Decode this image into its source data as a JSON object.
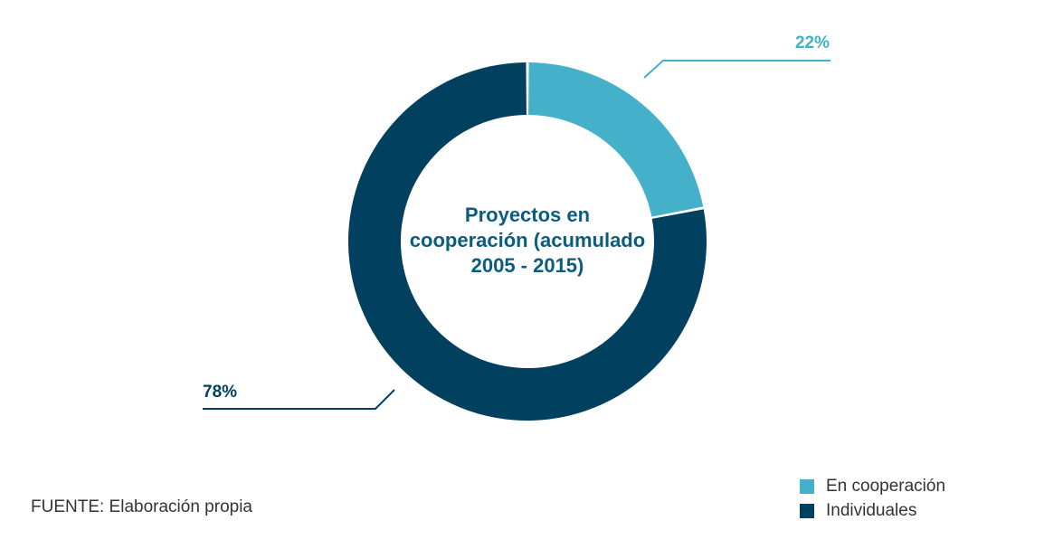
{
  "colors": {
    "en_cooperacion": "#45b0c9",
    "individuales": "#02405f",
    "title": "#0a5c80",
    "text": "#333333"
  },
  "chart_data": {
    "type": "pie",
    "variant": "donut",
    "title": "Proyectos en cooperación (acumulado 2005 - 2015)",
    "title_lines": [
      "Proyectos en",
      "cooperación (acumulado",
      "2005 - 2015)"
    ],
    "categories": [
      "En cooperación",
      "Individuales"
    ],
    "values": [
      22,
      78
    ],
    "labels": [
      "22%",
      "78%"
    ],
    "legend": {
      "placement": "bottom-right",
      "entries": [
        "En cooperación",
        "Individuales"
      ]
    }
  },
  "source": "FUENTE: Elaboración propia"
}
